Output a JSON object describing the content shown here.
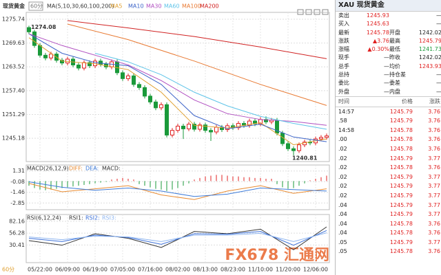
{
  "header": {
    "title": "现货黄金",
    "period": "60分"
  },
  "period_label": "60分",
  "watermark": "FX678 汇通网",
  "chart_data": [
    {
      "type": "candlestick",
      "title": "MA(5,10,30,60,100,200)",
      "categories": [
        null,
        null,
        "05/22:00",
        null,
        null,
        null,
        null,
        "06/09:00",
        null,
        null,
        null,
        null,
        "06/19:00",
        null,
        null,
        null,
        null,
        "07/05:00",
        null,
        null,
        null,
        null,
        "07/16:00",
        null,
        null,
        null,
        null,
        "08/02:00",
        null,
        null,
        null,
        null,
        "08/13:00",
        null,
        null,
        null,
        null,
        "08/23:00",
        null,
        null,
        null,
        null,
        "11/10:00",
        null,
        null,
        null,
        null,
        "11/20:00",
        null,
        null,
        null,
        null,
        "12/06:00",
        null,
        null
      ],
      "open": [
        1273.6,
        1272.5,
        1269.0,
        1266.5,
        1265.8,
        1266.8,
        1265.2,
        1264.5,
        1265.5,
        1264.0,
        1263.2,
        1264.6,
        1263.8,
        1265.0,
        1264.2,
        1263.5,
        1264.8,
        1262.0,
        1260.5,
        1261.2,
        1259.0,
        1258.2,
        1256.0,
        1254.5,
        1253.0,
        1253.8,
        1246.0,
        1247.2,
        1248.3,
        1247.6,
        1248.8,
        1247.5,
        1248.6,
        1247.2,
        1246.8,
        1248.0,
        1247.4,
        1248.4,
        1247.9,
        1249.0,
        1248.5,
        1249.6,
        1248.9,
        1250.0,
        1249.4,
        1249.8,
        1246.5,
        1243.8,
        1242.5,
        1242.0,
        1243.5,
        1244.2,
        1244.0,
        1245.0,
        1245.4
      ],
      "high": [
        1274.08,
        1273.0,
        1269.6,
        1267.1,
        1267.4,
        1267.4,
        1265.8,
        1266.1,
        1266.1,
        1264.6,
        1265.2,
        1265.2,
        1265.6,
        1265.6,
        1264.8,
        1265.4,
        1265.4,
        1262.6,
        1261.8,
        1261.8,
        1259.6,
        1258.8,
        1256.6,
        1255.1,
        1254.4,
        1254.4,
        1247.8,
        1248.9,
        1248.9,
        1249.4,
        1249.4,
        1249.2,
        1249.2,
        1247.8,
        1248.6,
        1248.6,
        1249.0,
        1249.0,
        1249.6,
        1249.6,
        1250.2,
        1250.2,
        1250.6,
        1250.8,
        1250.4,
        1250.4,
        1247.1,
        1244.4,
        1243.1,
        1244.1,
        1244.8,
        1244.8,
        1245.6,
        1246.0,
        1246.4
      ],
      "low": [
        1271.9,
        1268.4,
        1265.9,
        1265.2,
        1265.2,
        1264.6,
        1263.9,
        1263.9,
        1263.4,
        1262.6,
        1262.6,
        1263.2,
        1263.2,
        1263.6,
        1262.9,
        1262.9,
        1261.4,
        1259.9,
        1259.9,
        1258.4,
        1257.6,
        1255.4,
        1253.9,
        1252.4,
        1252.4,
        1245.4,
        1245.4,
        1246.6,
        1245.0,
        1247.0,
        1246.9,
        1246.9,
        1246.6,
        1244.5,
        1246.2,
        1246.8,
        1246.8,
        1247.3,
        1247.3,
        1247.9,
        1247.9,
        1248.3,
        1248.3,
        1248.8,
        1248.8,
        1245.9,
        1243.2,
        1241.9,
        1240.81,
        1241.4,
        1242.9,
        1243.4,
        1243.4,
        1244.4,
        1244.8
      ],
      "close": [
        1272.5,
        1269.0,
        1266.5,
        1265.8,
        1266.8,
        1265.2,
        1264.5,
        1265.5,
        1264.0,
        1263.2,
        1264.6,
        1263.8,
        1265.0,
        1264.2,
        1263.5,
        1264.8,
        1262.0,
        1260.5,
        1261.2,
        1259.0,
        1258.2,
        1256.0,
        1254.5,
        1253.0,
        1253.8,
        1246.0,
        1247.2,
        1248.3,
        1247.6,
        1248.8,
        1247.5,
        1248.6,
        1247.2,
        1246.8,
        1248.0,
        1247.4,
        1248.4,
        1247.9,
        1249.0,
        1248.5,
        1249.6,
        1248.9,
        1250.0,
        1249.4,
        1249.8,
        1246.5,
        1243.8,
        1242.5,
        1242.0,
        1243.5,
        1244.2,
        1244.0,
        1245.0,
        1245.4,
        1245.78
      ],
      "up_color": "#e02020",
      "down_color": "#1a9a3a",
      "ylim": [
        1239.2,
        1277.5
      ],
      "yticks": [
        1245.18,
        1251.29,
        {
          "value": 1257.4,
          "label": "1257.40"
        },
        1263.52,
        1269.63,
        1275.74
      ],
      "grid": true,
      "series": [
        {
          "name": "MA5",
          "color": "#e0a030",
          "x": [
            0,
            6,
            12,
            18,
            24,
            30,
            36,
            42,
            48,
            54
          ],
          "values": [
            1271,
            1265,
            1264.3,
            1262.8,
            1257,
            1248.5,
            1247.8,
            1249.2,
            1243.5,
            1245
          ]
        },
        {
          "name": "MA10",
          "color": "#3c64c8",
          "x": [
            0,
            6,
            12,
            18,
            24,
            30,
            36,
            42,
            48,
            54
          ],
          "values": [
            1272,
            1267,
            1264.6,
            1263.8,
            1259,
            1251,
            1247.6,
            1248.8,
            1245.5,
            1244.3
          ]
        },
        {
          "name": "MA30",
          "color": "#b04ec0",
          "x": [
            0,
            6,
            12,
            18,
            24,
            30,
            36,
            42,
            48,
            54
          ],
          "values": [
            1272,
            1269,
            1266.5,
            1264,
            1260,
            1255,
            1251.5,
            1250,
            1249.5,
            1248.5
          ]
        },
        {
          "name": "MA60",
          "color": "#5cc3e8",
          "x": [
            12,
            18,
            24,
            30,
            36,
            42,
            48,
            54
          ],
          "values": [
            1267,
            1264.8,
            1261.5,
            1257,
            1253.5,
            1250.8,
            1249,
            1247.5
          ]
        },
        {
          "name": "MA100",
          "color": "#e87830",
          "x": [
            7,
            18,
            30,
            42,
            54
          ],
          "values": [
            1274.5,
            1270.5,
            1265,
            1259,
            1253.6
          ]
        },
        {
          "name": "MA200",
          "color": "#d02020",
          "x": [
            7,
            18,
            30,
            42,
            54
          ],
          "values": [
            1275.4,
            1273.5,
            1271.3,
            1268.6,
            1265.6
          ]
        }
      ]
    },
    {
      "type": "macd",
      "title": "MACD(26,12,9)",
      "name": "MACD:",
      "up_color": "#e02020",
      "down_color": "#1a9a3a",
      "values": [
        -0.6,
        -0.9,
        -1.1,
        -1.2,
        -1.1,
        -1.0,
        -0.9,
        -0.8,
        -0.7,
        -0.6,
        -0.5,
        -0.4,
        -0.3,
        -0.2,
        -0.1,
        0.2,
        0.3,
        0.4,
        0.3,
        0.2,
        -0.4,
        -0.6,
        -0.8,
        -1.0,
        -1.1,
        -1.3,
        -1.1,
        -0.9,
        -0.6,
        -0.3,
        0.2,
        0.4,
        0.6,
        0.7,
        0.8,
        0.8,
        0.7,
        0.6,
        0.6,
        0.5,
        0.5,
        0.4,
        0.4,
        0.3,
        0.3,
        -0.4,
        -0.8,
        -1.0,
        -0.9,
        -0.6,
        -0.3,
        0.1,
        0.3,
        0.5,
        0.7
      ],
      "ylim": [
        -3.72,
        2.09
      ],
      "yticks": [
        -2.85,
        -1.46,
        -0.08,
        1.31
      ],
      "series": [
        {
          "name": "DIFF:",
          "color": "#e88a30",
          "x": [
            0,
            6,
            12,
            18,
            24,
            30,
            36,
            42,
            48,
            54
          ],
          "values": [
            -0.3,
            -1.4,
            -1.0,
            -0.6,
            -1.8,
            -2.4,
            -1.3,
            -0.6,
            -1.6,
            -1.0
          ]
        },
        {
          "name": "DEA:",
          "color": "#3c7ad8",
          "x": [
            0,
            6,
            12,
            18,
            24,
            30,
            36,
            42,
            48,
            54
          ],
          "values": [
            -0.1,
            -0.8,
            -1.2,
            -0.9,
            -1.3,
            -2.0,
            -1.7,
            -0.9,
            -1.1,
            -1.3
          ]
        }
      ]
    },
    {
      "type": "line",
      "title": "RSI(6,12,24)",
      "ylim": [
        -8,
        97
      ],
      "yticks": [
        30.41,
        56.28,
        82.16
      ],
      "series": [
        {
          "name": "RSI1:",
          "color": "#333333",
          "x": [
            0,
            6,
            12,
            18,
            24,
            30,
            36,
            42,
            48,
            54
          ],
          "values": [
            40,
            30,
            55,
            45,
            25,
            60,
            55,
            65,
            20,
            70
          ]
        },
        {
          "name": "RSI2:",
          "color": "#3a6fd8",
          "x": [
            0,
            6,
            12,
            18,
            24,
            30,
            36,
            42,
            48,
            54
          ],
          "values": [
            45,
            38,
            52,
            47,
            32,
            55,
            54,
            60,
            30,
            62
          ]
        },
        {
          "name": "RSI3:",
          "color": "#8fb6f0",
          "x": [
            0,
            6,
            12,
            18,
            24,
            30,
            36,
            42,
            48,
            54
          ],
          "values": [
            48,
            42,
            50,
            48,
            38,
            52,
            52,
            56,
            38,
            57
          ]
        }
      ]
    }
  ],
  "quote": {
    "title": "XAU 现货黄金",
    "rows": [
      [
        "卖出",
        "1245.93",
        "",
        "—"
      ],
      [
        "买入",
        "1245.63",
        "",
        "—"
      ],
      [
        "最新",
        "1245.78",
        "开盘",
        "1242.02"
      ],
      [
        "涨跌",
        "▲3.76",
        "最高",
        "1245.79"
      ],
      [
        "涨幅",
        "▲0.30%",
        "最低",
        "1241.73"
      ],
      [
        "现手",
        "—",
        "昨收",
        "1242.02"
      ],
      [
        "总手",
        "—",
        "均价",
        "1243.93"
      ],
      [
        "总持",
        "—",
        "持仓差",
        "—"
      ],
      [
        "委比",
        "—",
        "委差",
        "—"
      ],
      [
        "外盘",
        "—",
        "内盘",
        "—"
      ]
    ]
  },
  "ticks_table": {
    "header": [
      "时间",
      "价格",
      "涨跌"
    ],
    "rows": [
      [
        "14:57",
        "1245.79",
        "3.76"
      ],
      [
        ".58",
        "1245.79",
        "3.76"
      ],
      [
        "14:58",
        "1245.78",
        "3.76"
      ],
      [
        ".00",
        "1245.78",
        "3.76"
      ],
      [
        ".02",
        "1245.78",
        "3.76"
      ],
      [
        ".02",
        "1245.79",
        "3.77"
      ],
      [
        ".02",
        "1245.78",
        "3.76"
      ],
      [
        ".02",
        "1245.79",
        "3.77"
      ],
      [
        ".02",
        "1245.79",
        "3.77"
      ],
      [
        ".02",
        "1245.79",
        "3.77"
      ],
      [
        ".04",
        "1245.79",
        "3.77"
      ],
      [
        ".04",
        "1245.79",
        "3.77"
      ],
      [
        ".04",
        "1245.78",
        "3.76"
      ],
      [
        ".04",
        "1245.78",
        "3.76"
      ],
      [
        ".05",
        "1245.79",
        "3.77"
      ],
      [
        ".05",
        "1245.78",
        "3.76"
      ]
    ]
  }
}
